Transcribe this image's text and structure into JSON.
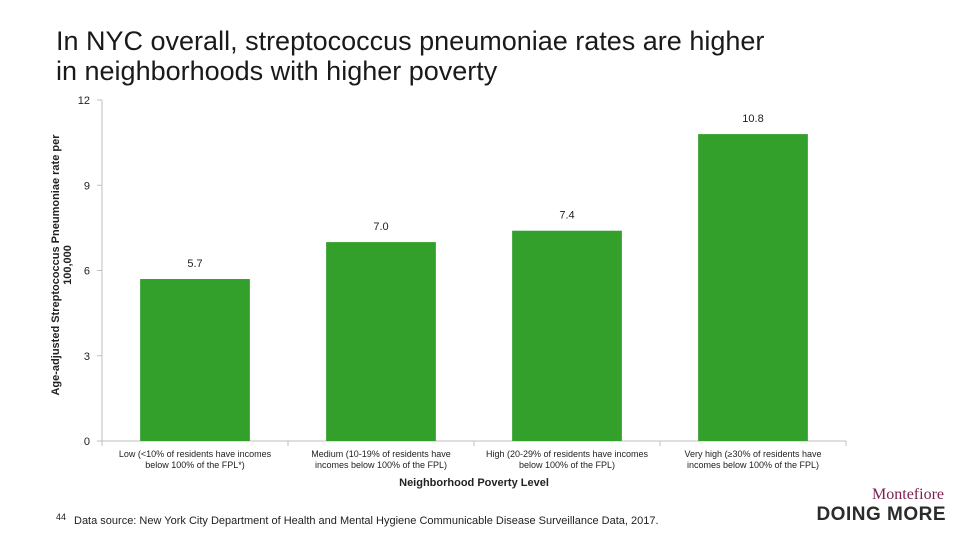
{
  "title_lines": [
    "In NYC overall, streptococcus pneumoniae rates are higher",
    "in neighborhoods with higher poverty"
  ],
  "footnote": "Data source: New York City Department of Health and Mental Hygiene Communicable Disease Surveillance Data, 2017.",
  "slide_number": "44",
  "logo": {
    "top": "Montefiore",
    "bottom": "DOING MORE"
  },
  "colors": {
    "bar": "#33a02c",
    "axis": "#bfbfbf",
    "text": "#222222"
  },
  "chart_data": {
    "type": "bar",
    "title": "In NYC overall, streptococcus pneumoniae rates are higher in neighborhoods with higher poverty",
    "xlabel": "Neighborhood Poverty Level",
    "ylabel": "Age-adjusted Streptococcus Pneumoniae rate per 100,000",
    "ylim": [
      0,
      12
    ],
    "yticks": [
      0,
      3,
      6,
      9,
      12
    ],
    "grid": false,
    "categories": [
      "Low (<10% of residents have incomes below 100% of the FPL*)",
      "Medium (10-19% of residents have incomes below 100% of the FPL)",
      "High (20-29% of residents have incomes below 100% of the FPL)",
      "Very high (≥30% of residents have incomes below 100% of the FPL)"
    ],
    "values": [
      5.7,
      7.0,
      7.4,
      10.8
    ],
    "value_labels": [
      "5.7",
      "7.0",
      "7.4",
      "10.8"
    ]
  }
}
